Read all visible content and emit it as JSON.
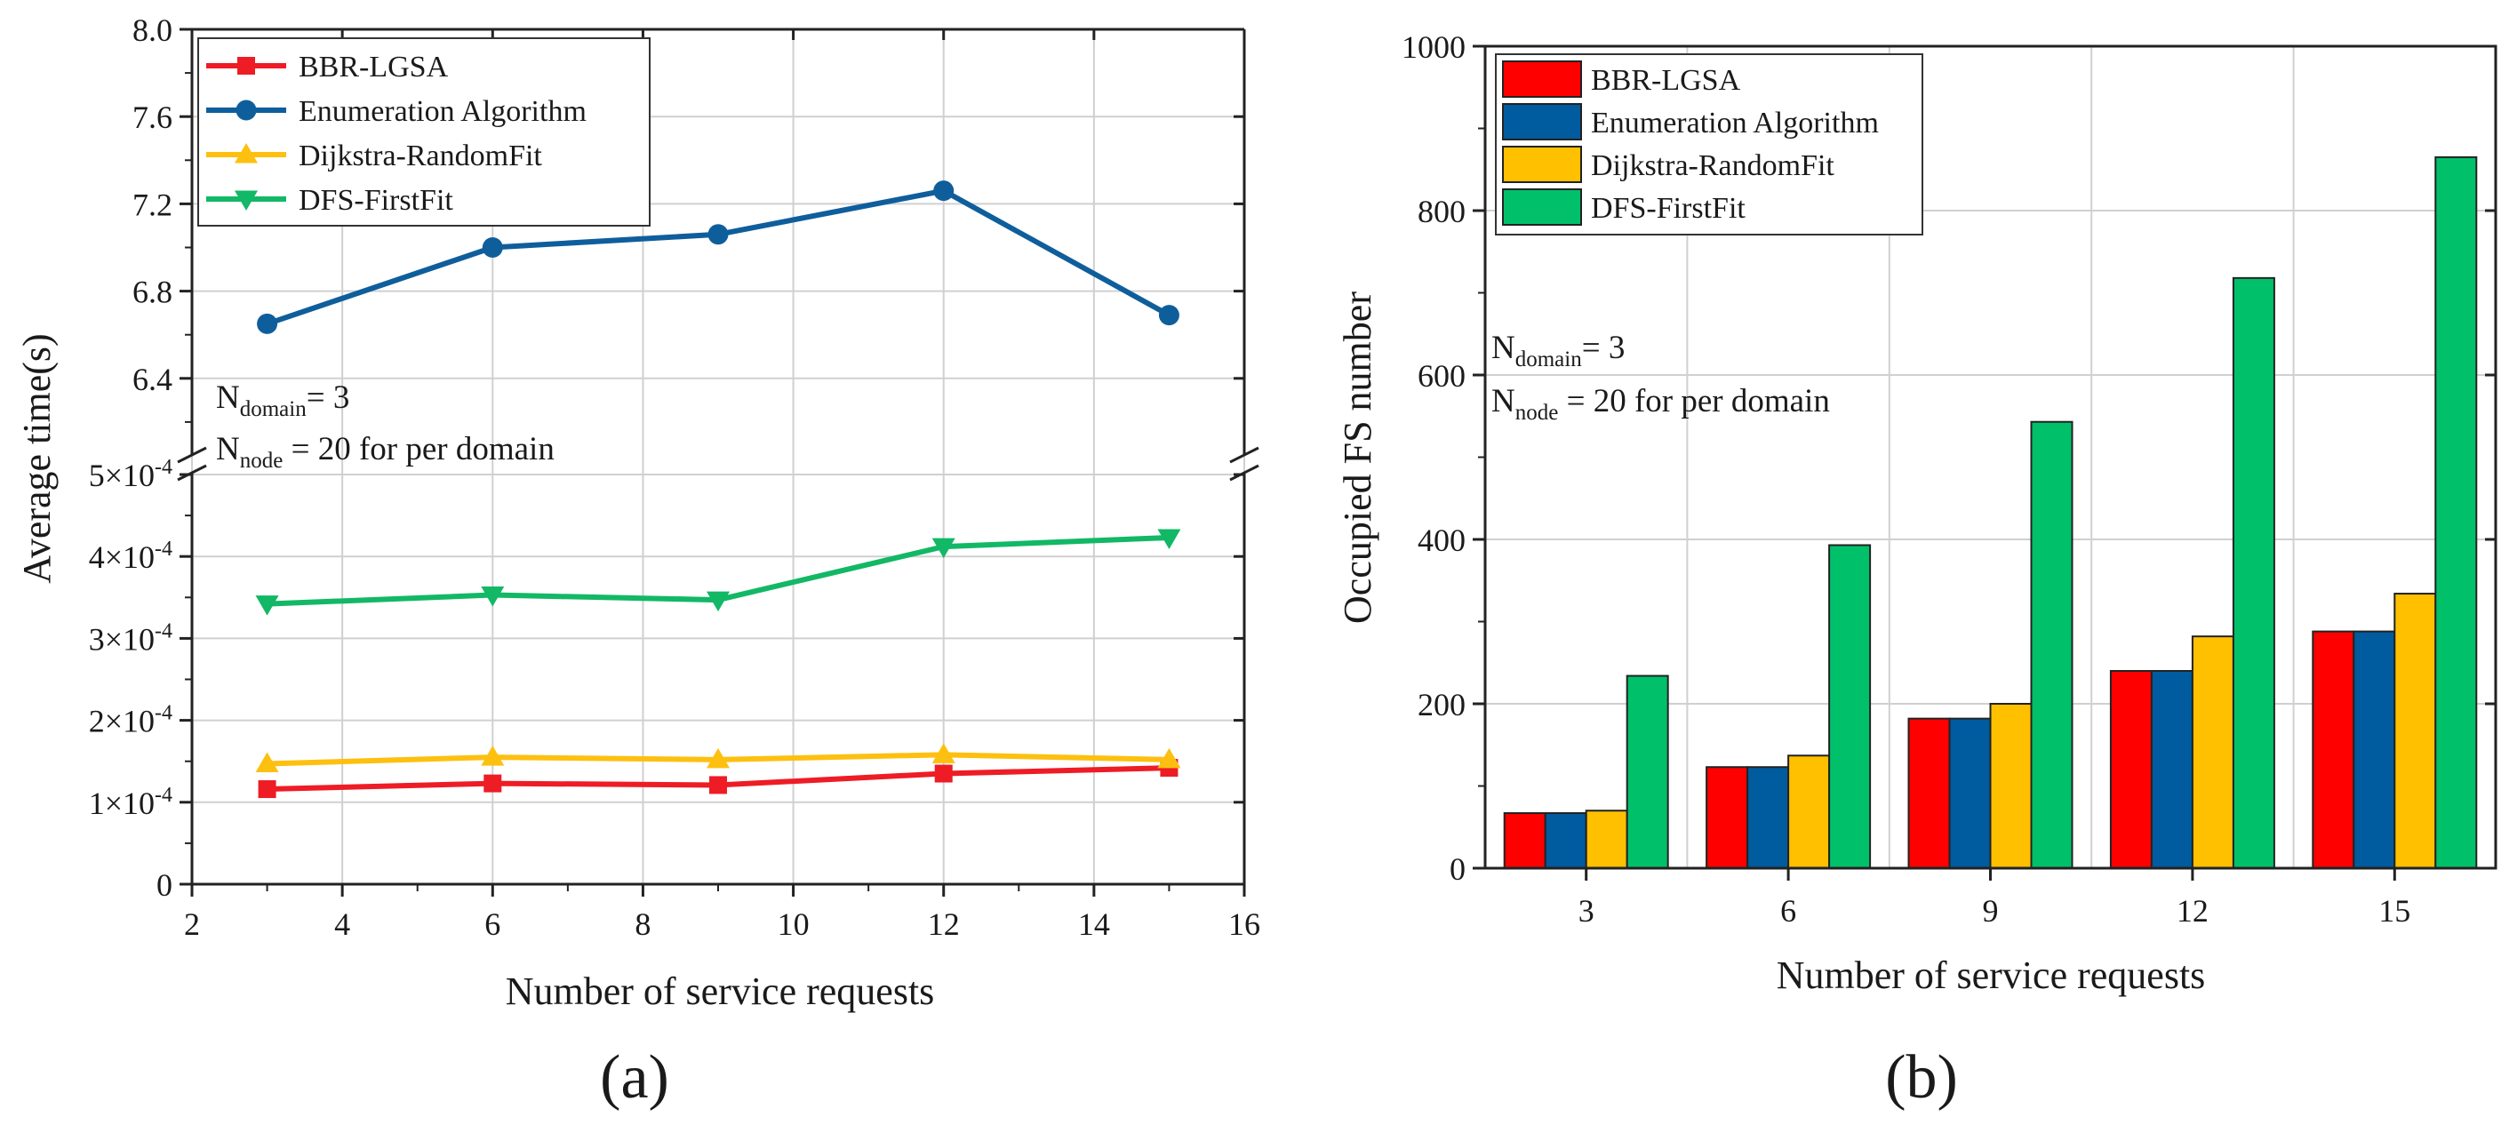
{
  "chart_data": [
    {
      "type": "line",
      "panel_label": "(a)",
      "xlabel": "Number of service requests",
      "ylabel": "Average time(s)",
      "xlim": [
        2,
        16
      ],
      "x_ticks": [
        "2",
        "4",
        "6",
        "8",
        "10",
        "12",
        "14",
        "16"
      ],
      "y_axis_break": true,
      "ylim_lower": [
        0,
        0.0005
      ],
      "ylim_upper": [
        6.0,
        8.0
      ],
      "y_ticks_lower": [
        "0",
        "1×10",
        "2×10",
        "3×10",
        "4×10",
        "5×10"
      ],
      "y_ticks_lower_exp": "-4",
      "y_ticks_upper": [
        "6.4",
        "6.8",
        "7.2",
        "7.6",
        "8.0"
      ],
      "grid": true,
      "legend_position": "top-left",
      "annotation": {
        "line1_main": "N",
        "line1_sub": "domain",
        "line1_rest": "= 3",
        "line2_main": "N",
        "line2_sub": "node",
        "line2_rest": " = 20 for per domain"
      },
      "x": [
        3,
        6,
        9,
        12,
        15
      ],
      "series": [
        {
          "name": "BBR-LGSA",
          "color": "#ee1c25",
          "marker": "square",
          "values": [
            0.000116,
            0.000123,
            0.000121,
            0.000135,
            0.000142
          ]
        },
        {
          "name": "Enumeration Algorithm",
          "color": "#0f5e9c",
          "marker": "circle",
          "values": [
            6.65,
            7.0,
            7.06,
            7.26,
            6.69
          ]
        },
        {
          "name": "Dijkstra-RandomFit",
          "color": "#fdc010",
          "marker": "triangle-up",
          "values": [
            0.000147,
            0.000155,
            0.000152,
            0.000158,
            0.000152
          ]
        },
        {
          "name": "DFS-FirstFit",
          "color": "#12b865",
          "marker": "triangle-down",
          "values": [
            0.000342,
            0.000353,
            0.000347,
            0.000412,
            0.000423
          ]
        }
      ]
    },
    {
      "type": "bar",
      "panel_label": "(b)",
      "xlabel": "Number of service requests",
      "ylabel": "Occupied FS number",
      "ylim": [
        0,
        1000
      ],
      "y_ticks": [
        "0",
        "200",
        "400",
        "600",
        "800",
        "1000"
      ],
      "grid": true,
      "legend_position": "top-left",
      "annotation": {
        "line1_main": "N",
        "line1_sub": "domain",
        "line1_rest": "= 3",
        "line2_main": "N",
        "line2_sub": "node",
        "line2_rest": " = 20 for per domain"
      },
      "categories": [
        "3",
        "6",
        "9",
        "12",
        "15"
      ],
      "series": [
        {
          "name": "BBR-LGSA",
          "color": "#ff0000",
          "values": [
            67,
            123,
            182,
            240,
            288
          ]
        },
        {
          "name": "Enumeration Algorithm",
          "color": "#005b9f",
          "values": [
            67,
            123,
            182,
            240,
            288
          ]
        },
        {
          "name": "Dijkstra-RandomFit",
          "color": "#ffc000",
          "values": [
            70,
            137,
            200,
            282,
            334
          ]
        },
        {
          "name": "DFS-FirstFit",
          "color": "#00c16a",
          "values": [
            234,
            393,
            543,
            718,
            865
          ]
        }
      ]
    }
  ]
}
